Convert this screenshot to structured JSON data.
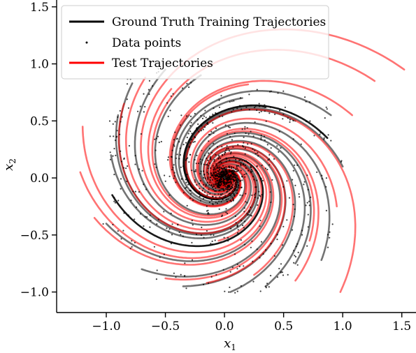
{
  "chart_data": {
    "type": "line",
    "xlabel": "x",
    "xlabel_sub": "1",
    "ylabel": "x",
    "ylabel_sub": "2",
    "xlim": [
      -1.42,
      1.62
    ],
    "ylim": [
      -1.18,
      1.56
    ],
    "x_ticks": [
      -1.0,
      -0.5,
      0.0,
      0.5,
      1.0,
      1.5
    ],
    "y_ticks": [
      -1.0,
      -0.5,
      0.0,
      0.5,
      1.0,
      1.5
    ],
    "x_tick_labels": [
      "−1.0",
      "−0.5",
      "0.0",
      "0.5",
      "1.0",
      "1.5"
    ],
    "y_tick_labels": [
      "−1.0",
      "−0.5",
      "0.0",
      "0.5",
      "1.0",
      "1.5"
    ],
    "grid": false,
    "legend": {
      "placement": "top-left",
      "entries": [
        {
          "label": "Ground Truth Training Trajectories",
          "marker": "line",
          "color": "#000000"
        },
        {
          "label": "Data points",
          "marker": "dot",
          "color": "#000000"
        },
        {
          "label": "Test Trajectories",
          "marker": "line",
          "color": "#ff0000"
        }
      ]
    },
    "dynamics": {
      "a": -0.8,
      "b": 2.0
    },
    "series": [
      {
        "kind": "training",
        "color": "#000000",
        "opacity": 0.55,
        "starts": [
          [
            -0.78,
            0.83
          ],
          [
            -0.5,
            0.95
          ],
          [
            -0.2,
            0.9
          ],
          [
            0.15,
            0.7
          ],
          [
            0.35,
            0.62
          ],
          [
            0.9,
            0.55
          ],
          [
            0.82,
            -0.72
          ],
          [
            0.6,
            -0.75
          ],
          [
            0.35,
            -0.95
          ],
          [
            0.05,
            -1.0
          ],
          [
            -0.35,
            -0.95
          ],
          [
            -0.7,
            -0.8
          ],
          [
            -1.0,
            -0.4
          ],
          [
            -0.96,
            0.2
          ],
          [
            -0.9,
            0.55
          ],
          [
            0.6,
            0.5
          ],
          [
            1.0,
            0.1
          ],
          [
            -0.3,
            0.55
          ]
        ]
      },
      {
        "kind": "training",
        "color": "#000000",
        "opacity": 0.9,
        "starts": [
          [
            0.87,
            0.35
          ],
          [
            -0.95,
            -0.15
          ]
        ]
      },
      {
        "kind": "test",
        "color": "#ff0000",
        "opacity": 0.55,
        "starts": [
          [
            1.52,
            0.95
          ],
          [
            1.27,
            0.85
          ],
          [
            1.08,
            0.55
          ],
          [
            -0.67,
            0.88
          ],
          [
            -0.85,
            0.65
          ],
          [
            -1.2,
            0.45
          ],
          [
            0.98,
            -1.0
          ],
          [
            0.6,
            -0.9
          ],
          [
            0.25,
            -0.85
          ],
          [
            -0.15,
            -0.92
          ],
          [
            -0.5,
            -0.88
          ],
          [
            -1.1,
            -0.35
          ],
          [
            -1.22,
            0.05
          ],
          [
            0.72,
            -0.55
          ],
          [
            -0.45,
            0.78
          ],
          [
            0.2,
            0.82
          ],
          [
            0.95,
            -0.25
          ],
          [
            -0.05,
            -0.55
          ]
        ]
      }
    ],
    "data_points": {
      "color": "#000000",
      "count": 1100,
      "spread": 0.05
    }
  }
}
